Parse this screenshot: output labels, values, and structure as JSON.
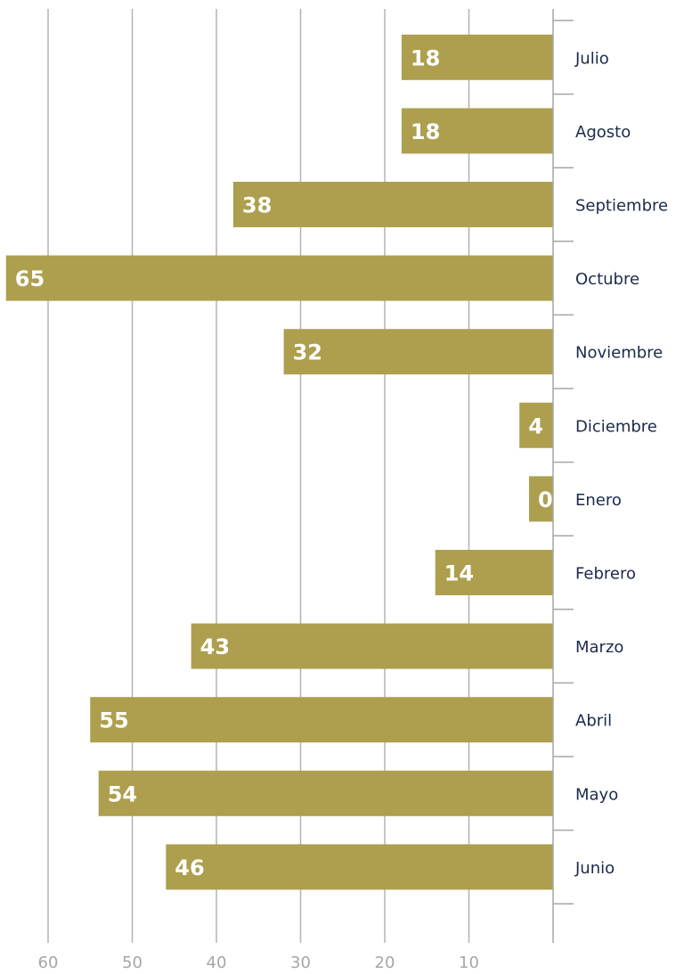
{
  "colors": {
    "bar": "#ad9f4e",
    "value_text": "#ffffff",
    "category_text": "#1c2a4a",
    "axis": "#a6a6a6",
    "grid": "#b3b3b3"
  },
  "chart_data": {
    "type": "bar",
    "orientation": "horizontal",
    "direction": "bars extend leftward from axis on the right",
    "categories": [
      "Julio",
      "Agosto",
      "Septiembre",
      "Octubre",
      "Noviembre",
      "Diciembre",
      "Enero",
      "Febrero",
      "Marzo",
      "Abril",
      "Mayo",
      "Junio"
    ],
    "values": [
      18,
      18,
      38,
      65,
      32,
      4,
      0,
      14,
      43,
      55,
      54,
      46
    ],
    "value_labels": [
      "18",
      "18",
      "38",
      "65",
      "32",
      "4",
      "0",
      "14",
      "43",
      "55",
      "54",
      "46"
    ],
    "xticks": [
      60,
      50,
      40,
      30,
      20,
      10
    ],
    "xtick_labels": [
      "60",
      "50",
      "40",
      "30",
      "20",
      "10"
    ],
    "xlim": [
      0,
      65.5
    ],
    "grid": "vertical",
    "legend": "none",
    "title": "",
    "xlabel": "",
    "ylabel": ""
  }
}
